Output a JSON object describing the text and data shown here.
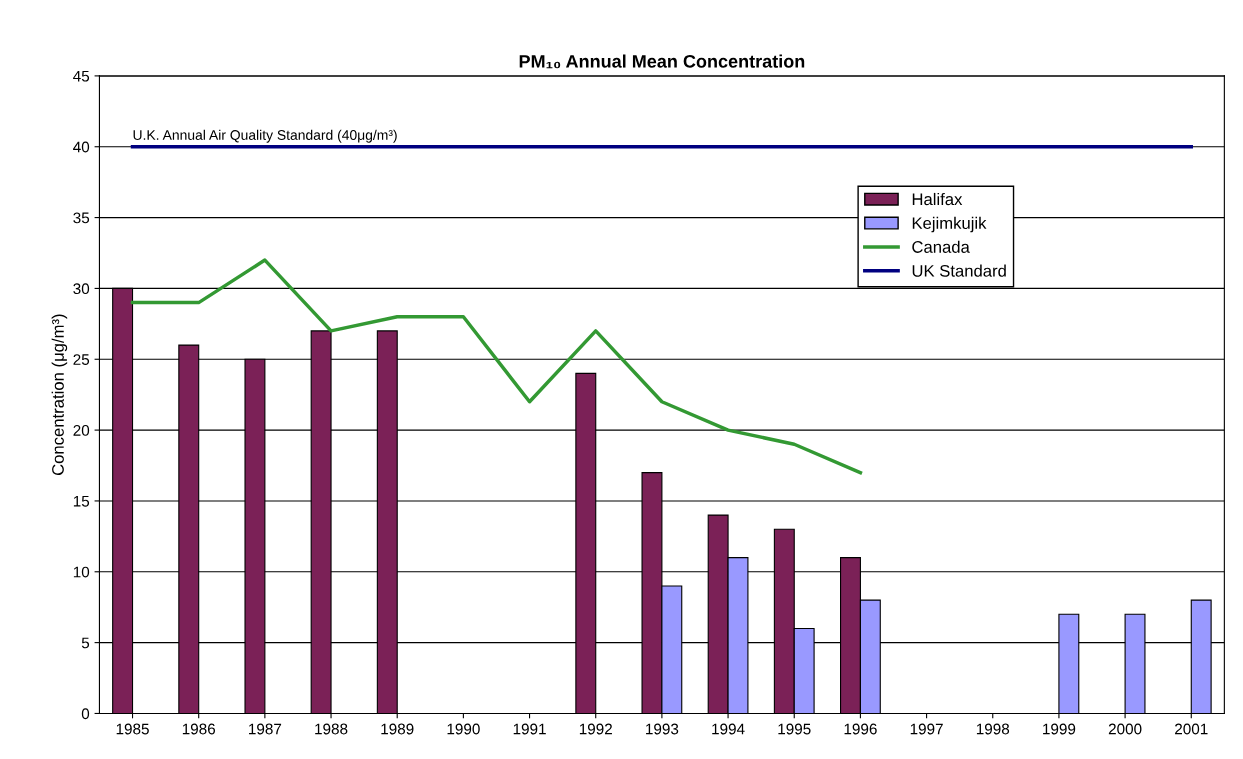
{
  "chart_data": {
    "type": "bar",
    "title": "PM₁₀ Annual Mean Concentration",
    "ylabel": "Concentration (μg/m³)",
    "categories": [
      "1985",
      "1986",
      "1987",
      "1988",
      "1989",
      "1990",
      "1991",
      "1992",
      "1993",
      "1994",
      "1995",
      "1996",
      "1997",
      "1998",
      "1999",
      "2000",
      "2001"
    ],
    "series": [
      {
        "name": "Halifax",
        "color": "#7b2157",
        "values": [
          30,
          26,
          25,
          27,
          27,
          null,
          null,
          24,
          17,
          14,
          13,
          11,
          null,
          null,
          null,
          null,
          null
        ]
      },
      {
        "name": "Kejimkujik",
        "color": "#9999ff",
        "values": [
          null,
          null,
          null,
          null,
          null,
          null,
          null,
          null,
          9,
          11,
          6,
          8,
          null,
          null,
          7,
          7,
          8
        ]
      },
      {
        "name": "Canada",
        "type": "line",
        "color": "#339933",
        "values": [
          29,
          29,
          32,
          27,
          28,
          28,
          22,
          27,
          22,
          20,
          19,
          17,
          null,
          null,
          null,
          null,
          null
        ]
      },
      {
        "name": "UK Standard",
        "type": "line",
        "color": "#000080",
        "values": [
          40,
          40,
          40,
          40,
          40,
          40,
          40,
          40,
          40,
          40,
          40,
          40,
          40,
          40,
          40,
          40,
          40
        ]
      }
    ],
    "annotations": [
      {
        "text": "U.K. Annual Air Quality Standard (40μg/m³)",
        "x": "1985",
        "y": 40
      }
    ],
    "ylim": [
      0,
      45
    ],
    "yticks": [
      0,
      5,
      10,
      15,
      20,
      25,
      30,
      35,
      40,
      45
    ],
    "grid": "y",
    "legend": "top right",
    "marker": "none",
    "line_style": "solid"
  }
}
